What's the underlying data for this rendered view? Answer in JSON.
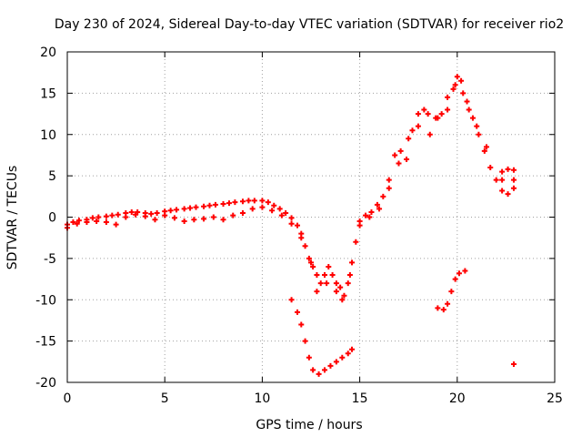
{
  "chart_data": {
    "type": "scatter",
    "title": "Day 230 of 2024, Sidereal Day-to-day VTEC variation (SDTVAR) for receiver rio2",
    "xlabel": "GPS time / hours",
    "ylabel": "SDTVAR / TECUs",
    "xlim": [
      0,
      25
    ],
    "ylim": [
      -20,
      20
    ],
    "xticks": [
      0,
      5,
      10,
      15,
      20,
      25
    ],
    "yticks": [
      -20,
      -15,
      -10,
      -5,
      0,
      5,
      10,
      15,
      20
    ],
    "xtick_labels": [
      "0",
      "5",
      "10",
      "15",
      "20",
      "25"
    ],
    "ytick_labels": [
      "-20",
      "-15",
      "-10",
      "-5",
      "0",
      "5",
      "10",
      "15",
      "20"
    ],
    "grid": true,
    "marker": "plus",
    "color": "#ff0000",
    "series": [
      {
        "name": "",
        "points": [
          [
            0.0,
            -0.9
          ],
          [
            0.3,
            -0.6
          ],
          [
            0.6,
            -0.4
          ],
          [
            1.0,
            -0.3
          ],
          [
            1.3,
            -0.1
          ],
          [
            1.6,
            0.0
          ],
          [
            2.0,
            0.1
          ],
          [
            2.3,
            0.2
          ],
          [
            2.6,
            0.3
          ],
          [
            3.0,
            0.5
          ],
          [
            3.3,
            0.6
          ],
          [
            3.6,
            0.6
          ],
          [
            4.0,
            0.5
          ],
          [
            4.3,
            0.4
          ],
          [
            4.6,
            0.5
          ],
          [
            5.0,
            0.7
          ],
          [
            5.3,
            0.8
          ],
          [
            5.6,
            0.9
          ],
          [
            6.0,
            1.0
          ],
          [
            6.3,
            1.1
          ],
          [
            6.6,
            1.2
          ],
          [
            7.0,
            1.3
          ],
          [
            7.3,
            1.4
          ],
          [
            7.6,
            1.5
          ],
          [
            8.0,
            1.6
          ],
          [
            8.3,
            1.7
          ],
          [
            8.6,
            1.8
          ],
          [
            9.0,
            1.9
          ],
          [
            9.3,
            2.0
          ],
          [
            9.6,
            2.0
          ],
          [
            10.0,
            2.0
          ],
          [
            10.3,
            1.8
          ],
          [
            10.6,
            1.4
          ],
          [
            10.9,
            1.0
          ],
          [
            11.2,
            0.5
          ],
          [
            11.5,
            -0.1
          ],
          [
            11.8,
            -1.0
          ],
          [
            12.0,
            -2.0
          ],
          [
            12.2,
            -3.5
          ],
          [
            12.4,
            -5.0
          ],
          [
            12.6,
            -6.0
          ],
          [
            12.8,
            -7.0
          ],
          [
            13.0,
            -8.0
          ],
          [
            13.2,
            -7.0
          ],
          [
            13.4,
            -6.0
          ],
          [
            13.6,
            -7.0
          ],
          [
            13.8,
            -8.0
          ],
          [
            14.0,
            -8.5
          ],
          [
            14.2,
            -9.5
          ],
          [
            14.4,
            -8.0
          ],
          [
            14.6,
            -5.5
          ],
          [
            14.8,
            -3.0
          ],
          [
            15.0,
            -0.5
          ],
          [
            15.3,
            0.2
          ],
          [
            15.6,
            0.6
          ],
          [
            15.9,
            1.5
          ],
          [
            16.2,
            2.5
          ],
          [
            16.5,
            4.5
          ],
          [
            16.8,
            7.5
          ],
          [
            17.1,
            8.0
          ],
          [
            17.4,
            7.0
          ],
          [
            17.7,
            10.5
          ],
          [
            18.0,
            12.5
          ],
          [
            18.3,
            13.0
          ],
          [
            18.6,
            10.0
          ],
          [
            18.9,
            12.0
          ],
          [
            19.2,
            12.5
          ],
          [
            19.5,
            13.0
          ],
          [
            19.8,
            15.5
          ],
          [
            20.0,
            17.0
          ],
          [
            20.2,
            16.5
          ],
          [
            20.5,
            14.0
          ],
          [
            20.8,
            12.0
          ],
          [
            21.1,
            10.0
          ],
          [
            21.4,
            8.0
          ],
          [
            21.7,
            6.0
          ],
          [
            22.0,
            4.5
          ],
          [
            22.3,
            3.2
          ],
          [
            22.6,
            2.8
          ],
          [
            22.9,
            3.5
          ],
          [
            22.3,
            5.5
          ],
          [
            22.6,
            5.8
          ],
          [
            22.9,
            5.7
          ],
          [
            22.3,
            4.5
          ],
          [
            22.9,
            4.5
          ],
          [
            0.0,
            -1.3
          ],
          [
            0.5,
            -0.8
          ],
          [
            1.0,
            -0.6
          ],
          [
            1.5,
            -0.5
          ],
          [
            2.0,
            -0.6
          ],
          [
            2.5,
            -0.9
          ],
          [
            3.0,
            0.0
          ],
          [
            3.5,
            0.3
          ],
          [
            4.0,
            0.1
          ],
          [
            4.5,
            -0.3
          ],
          [
            5.0,
            0.2
          ],
          [
            5.5,
            -0.1
          ],
          [
            6.0,
            -0.5
          ],
          [
            6.5,
            -0.3
          ],
          [
            7.0,
            -0.2
          ],
          [
            7.5,
            0.0
          ],
          [
            8.0,
            -0.3
          ],
          [
            8.5,
            0.2
          ],
          [
            9.0,
            0.5
          ],
          [
            9.5,
            1.0
          ],
          [
            10.0,
            1.2
          ],
          [
            10.5,
            0.8
          ],
          [
            11.0,
            0.2
          ],
          [
            11.5,
            -0.8
          ],
          [
            12.0,
            -2.5
          ],
          [
            12.5,
            -5.5
          ],
          [
            12.8,
            -9.0
          ],
          [
            13.3,
            -8.0
          ],
          [
            13.8,
            -9.0
          ],
          [
            14.1,
            -10.0
          ],
          [
            14.5,
            -7.0
          ],
          [
            15.0,
            -1.0
          ],
          [
            15.5,
            0.0
          ],
          [
            16.0,
            1.0
          ],
          [
            16.5,
            3.5
          ],
          [
            17.0,
            6.5
          ],
          [
            17.5,
            9.5
          ],
          [
            18.0,
            11.0
          ],
          [
            18.5,
            12.5
          ],
          [
            19.0,
            12.0
          ],
          [
            19.5,
            14.5
          ],
          [
            19.9,
            16.0
          ],
          [
            20.3,
            15.0
          ],
          [
            20.6,
            13.0
          ],
          [
            21.0,
            11.0
          ],
          [
            21.5,
            8.5
          ],
          [
            11.5,
            -10.0
          ],
          [
            11.8,
            -11.5
          ],
          [
            12.0,
            -13.0
          ],
          [
            12.2,
            -15.0
          ],
          [
            12.4,
            -17.0
          ],
          [
            12.6,
            -18.5
          ],
          [
            12.9,
            -19.0
          ],
          [
            13.2,
            -18.5
          ],
          [
            13.5,
            -18.0
          ],
          [
            13.8,
            -17.5
          ],
          [
            14.1,
            -17.0
          ],
          [
            14.4,
            -16.5
          ],
          [
            14.6,
            -16.0
          ],
          [
            19.0,
            -11.0
          ],
          [
            19.3,
            -11.2
          ],
          [
            19.5,
            -10.5
          ],
          [
            19.7,
            -9.0
          ],
          [
            19.9,
            -7.5
          ],
          [
            20.1,
            -6.8
          ],
          [
            20.4,
            -6.5
          ],
          [
            22.9,
            -17.8
          ]
        ]
      }
    ]
  }
}
